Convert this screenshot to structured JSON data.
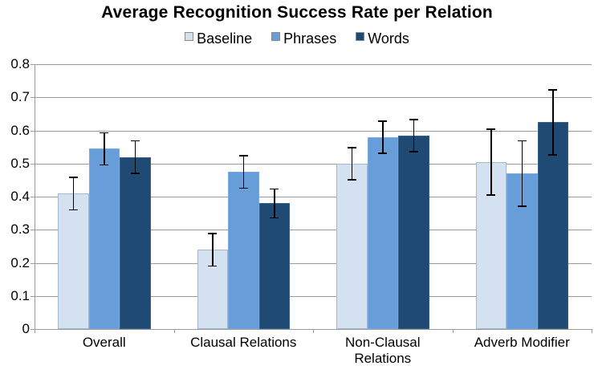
{
  "chart_data": {
    "type": "bar",
    "title": "Average Recognition Success Rate per Relation",
    "categories": [
      "Overall",
      "Clausal Relations",
      "Non-Clausal Relations",
      "Adverb Modifier"
    ],
    "series": [
      {
        "name": "Baseline",
        "color": "#D3E1F1",
        "border_color": "#A2B8D1",
        "values": [
          0.41,
          0.24,
          0.5,
          0.505
        ],
        "errors": [
          0.05,
          0.05,
          0.05,
          0.1
        ]
      },
      {
        "name": "Phrases",
        "color": "#679EDA",
        "border_color": "#78AAE2",
        "values": [
          0.545,
          0.475,
          0.58,
          0.47
        ],
        "errors": [
          0.05,
          0.05,
          0.05,
          0.1
        ]
      },
      {
        "name": "Words",
        "color": "#1F4A73",
        "border_color": "#33608C",
        "values": [
          0.52,
          0.38,
          0.585,
          0.625
        ],
        "errors": [
          0.05,
          0.045,
          0.05,
          0.1
        ]
      }
    ],
    "xlabel": "",
    "ylabel": "",
    "ylim": [
      0,
      0.8
    ],
    "ytick_step": 0.1,
    "ytick_labels": [
      "0",
      "0.1",
      "0.2",
      "0.3",
      "0.4",
      "0.5",
      "0.6",
      "0.7",
      "0.8"
    ],
    "grid": true,
    "legend_position": "top",
    "error_bars": true,
    "colors": {
      "grid_line": "#9B9B9B",
      "axis_line": "#9B9B9B",
      "error_bar": "#000000",
      "text": "#000000",
      "legend_swatch_border": "#8A8A8A",
      "background": "#FFFFFF"
    }
  }
}
